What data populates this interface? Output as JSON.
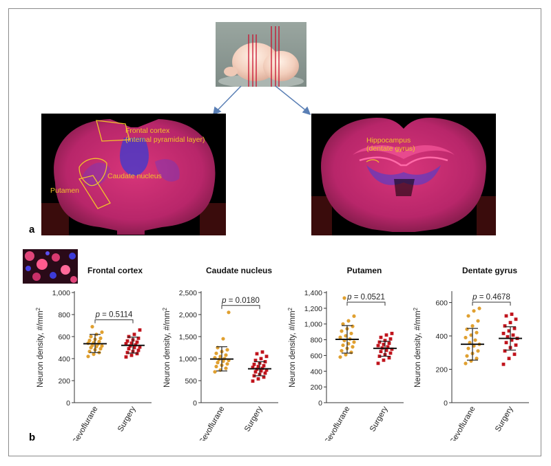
{
  "panel_labels": {
    "a": "a",
    "b": "b"
  },
  "colors": {
    "sevoflurane": "#e0a030",
    "surgery": "#c0141c",
    "arrow": "#5a7fb5",
    "annotation": "#f2c22a",
    "tissue": "#b0307a"
  },
  "annotations": {
    "frontal_cortex_line1": "Frontal cortex",
    "frontal_cortex_line2": "(internal pyramidal layer)",
    "caudate": "Caudate nucleus",
    "putamen": "Putamen",
    "hippocampus_line1": "Hippocampus",
    "hippocampus_line2": "(dentate gyrus)"
  },
  "chart_data": [
    {
      "type": "scatter",
      "title": "Frontal cortex",
      "ylabel": "Neuron density, #/mm",
      "ylabel_sup": "2",
      "categories": [
        "Sevoflurane",
        "Surgery"
      ],
      "yticks": [
        "0",
        "200",
        "400",
        "600",
        "800",
        "1,000"
      ],
      "ytick_values": [
        0,
        200,
        400,
        600,
        800,
        1000
      ],
      "ylim": [
        0,
        1000
      ],
      "p_label": "p",
      "p_value": "= 0.5114",
      "series": [
        {
          "category": "Sevoflurane",
          "marker": "circle",
          "mean": 535,
          "sd_low": 455,
          "sd_high": 620,
          "values": [
            420,
            440,
            455,
            465,
            480,
            490,
            500,
            510,
            515,
            520,
            530,
            540,
            545,
            555,
            565,
            575,
            585,
            600,
            620,
            640,
            690
          ]
        },
        {
          "category": "Surgery",
          "marker": "square",
          "mean": 520,
          "sd_low": 450,
          "sd_high": 595,
          "values": [
            415,
            430,
            445,
            455,
            465,
            475,
            490,
            500,
            505,
            515,
            525,
            535,
            540,
            550,
            560,
            570,
            585,
            600,
            620,
            660
          ]
        }
      ]
    },
    {
      "type": "scatter",
      "title": "Caudate nucleus",
      "ylabel": "Neuron density, #/mm",
      "ylabel_sup": "2",
      "categories": [
        "Sevoflurane",
        "Surgery"
      ],
      "yticks": [
        "0",
        "500",
        "1,000",
        "1,500",
        "2,000",
        "2,500"
      ],
      "ytick_values": [
        0,
        500,
        1000,
        1500,
        2000,
        2500
      ],
      "ylim": [
        0,
        2500
      ],
      "p_label": "p",
      "p_value": "= 0.0180",
      "series": [
        {
          "category": "Sevoflurane",
          "marker": "circle",
          "mean": 990,
          "sd_low": 720,
          "sd_high": 1270,
          "values": [
            700,
            740,
            780,
            820,
            850,
            880,
            910,
            940,
            960,
            980,
            1000,
            1020,
            1050,
            1080,
            1120,
            1160,
            1200,
            1250,
            1450,
            2050
          ]
        },
        {
          "category": "Surgery",
          "marker": "square",
          "mean": 770,
          "sd_low": 610,
          "sd_high": 930,
          "values": [
            490,
            540,
            580,
            610,
            640,
            670,
            700,
            720,
            740,
            760,
            780,
            800,
            820,
            840,
            870,
            900,
            930,
            960,
            1000,
            1050,
            1110,
            1150
          ]
        }
      ]
    },
    {
      "type": "scatter",
      "title": "Putamen",
      "ylabel": "Neuron density, #/mm",
      "ylabel_sup": "2",
      "categories": [
        "Sevoflurane",
        "Surgery"
      ],
      "yticks": [
        "0",
        "200",
        "400",
        "600",
        "800",
        "1,000",
        "1,200",
        "1,400"
      ],
      "ytick_values": [
        0,
        200,
        400,
        600,
        800,
        1000,
        1200,
        1400
      ],
      "ylim": [
        0,
        1400
      ],
      "p_label": "p",
      "p_value": "= 0.0521",
      "series": [
        {
          "category": "Sevoflurane",
          "marker": "circle",
          "mean": 805,
          "sd_low": 630,
          "sd_high": 980,
          "values": [
            580,
            610,
            640,
            660,
            690,
            710,
            730,
            750,
            770,
            790,
            810,
            830,
            850,
            880,
            910,
            940,
            970,
            1000,
            1040,
            1100,
            1330
          ]
        },
        {
          "category": "Surgery",
          "marker": "square",
          "mean": 690,
          "sd_low": 590,
          "sd_high": 780,
          "values": [
            500,
            540,
            570,
            590,
            610,
            630,
            650,
            665,
            680,
            695,
            710,
            725,
            740,
            755,
            770,
            790,
            810,
            830,
            860,
            880
          ]
        }
      ]
    },
    {
      "type": "scatter",
      "title": "Dentate gyrus",
      "ylabel": "Neuron density, #/mm",
      "ylabel_sup": "2",
      "categories": [
        "Sevoflurane",
        "Surgery"
      ],
      "yticks": [
        "0",
        "200",
        "400",
        "600"
      ],
      "ytick_values": [
        0,
        200,
        400,
        600
      ],
      "ylim": [
        0,
        660
      ],
      "p_label": "p",
      "p_value": "= 0.4678",
      "series": [
        {
          "category": "Sevoflurane",
          "marker": "circle",
          "mean": 350,
          "sd_low": 255,
          "sd_high": 445,
          "values": [
            235,
            250,
            265,
            280,
            295,
            310,
            325,
            340,
            350,
            360,
            375,
            390,
            405,
            420,
            440,
            460,
            490,
            520,
            550,
            565
          ]
        },
        {
          "category": "Surgery",
          "marker": "square",
          "mean": 385,
          "sd_low": 315,
          "sd_high": 455,
          "values": [
            230,
            265,
            290,
            310,
            330,
            345,
            360,
            375,
            385,
            395,
            405,
            415,
            430,
            445,
            460,
            480,
            500,
            520,
            530
          ]
        }
      ]
    }
  ]
}
